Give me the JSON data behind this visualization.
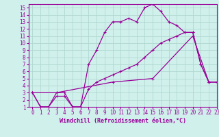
{
  "bg_color": "#d0f0ec",
  "grid_color": "#b0d8d0",
  "line_color": "#990099",
  "xlabel": "Windchill (Refroidissement éolien,°C)",
  "xlim": [
    -0.5,
    23
  ],
  "ylim": [
    1,
    15.5
  ],
  "xticks": [
    0,
    1,
    2,
    3,
    4,
    5,
    6,
    7,
    8,
    9,
    10,
    11,
    12,
    13,
    14,
    15,
    16,
    17,
    18,
    19,
    20,
    21,
    22,
    23
  ],
  "yticks": [
    1,
    2,
    3,
    4,
    5,
    6,
    7,
    8,
    9,
    10,
    11,
    12,
    13,
    14,
    15
  ],
  "line1_x": [
    0,
    1,
    2,
    3,
    4,
    5,
    6,
    7,
    8,
    9,
    10,
    11,
    12,
    13,
    14,
    15,
    16,
    17,
    18,
    19,
    20,
    21,
    22,
    23
  ],
  "line1_y": [
    3,
    1,
    1,
    3,
    3,
    1,
    1,
    7,
    9,
    11.5,
    13,
    13,
    13.5,
    13,
    15,
    15.5,
    14.5,
    13,
    12.5,
    11.5,
    11.5,
    7,
    4.5,
    4.5
  ],
  "line2_x": [
    0,
    1,
    2,
    3,
    4,
    5,
    6,
    7,
    8,
    9,
    10,
    11,
    12,
    13,
    14,
    15,
    16,
    17,
    18,
    19,
    20,
    21,
    22,
    23
  ],
  "line2_y": [
    3,
    1,
    1,
    2.5,
    2.5,
    1,
    1,
    3.5,
    4.5,
    5,
    5.5,
    6,
    6.5,
    7,
    8,
    9,
    10,
    10.5,
    11,
    11.5,
    11.5,
    7,
    4.5,
    4.5
  ],
  "line3_x": [
    0,
    3,
    10,
    15,
    20,
    22,
    23
  ],
  "line3_y": [
    3,
    3,
    4.5,
    5,
    11,
    4.5,
    4.5
  ],
  "tick_fontsize": 5.5,
  "xlabel_fontsize": 6.0,
  "figwidth": 3.2,
  "figheight": 2.0,
  "dpi": 100
}
